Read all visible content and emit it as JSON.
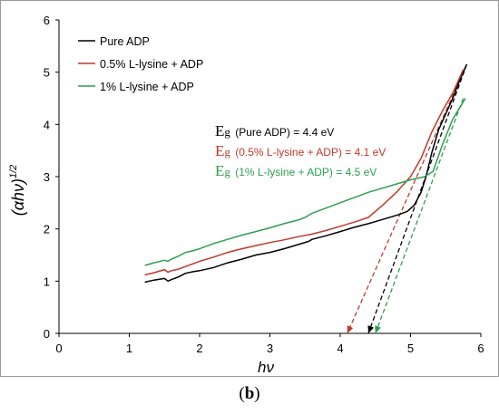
{
  "chart_data": {
    "type": "line",
    "xlabel": "hν",
    "ylabel_main": "(αhν)",
    "ylabel_sup": "1/2",
    "xlim": [
      0,
      6
    ],
    "ylim": [
      0,
      6
    ],
    "xticks": [
      "0",
      "1",
      "2",
      "3",
      "4",
      "5",
      "6"
    ],
    "yticks": [
      "0",
      "1",
      "2",
      "3",
      "4",
      "5",
      "6"
    ],
    "grid": false,
    "legend_position": "top-left",
    "series": [
      {
        "name": "Pure ADP",
        "color": "#000000",
        "x": [
          1.22,
          1.35,
          1.5,
          1.55,
          1.6,
          1.7,
          1.8,
          1.9,
          2.0,
          2.2,
          2.4,
          2.6,
          2.8,
          3.0,
          3.2,
          3.4,
          3.55,
          3.6,
          3.8,
          4.0,
          4.2,
          4.4,
          4.6,
          4.8,
          4.95,
          5.05,
          5.15,
          5.22,
          5.3,
          5.4,
          5.5,
          5.6,
          5.7,
          5.8
        ],
        "y": [
          0.98,
          1.02,
          1.05,
          1.0,
          1.03,
          1.08,
          1.15,
          1.18,
          1.2,
          1.26,
          1.35,
          1.42,
          1.5,
          1.55,
          1.62,
          1.7,
          1.76,
          1.8,
          1.87,
          1.95,
          2.03,
          2.1,
          2.18,
          2.26,
          2.33,
          2.45,
          2.7,
          3.0,
          3.45,
          3.9,
          4.2,
          4.5,
          4.85,
          5.15
        ]
      },
      {
        "name": "0.5% L-lysine + ADP",
        "color": "#c0392b",
        "x": [
          1.22,
          1.35,
          1.5,
          1.55,
          1.6,
          1.7,
          1.8,
          1.9,
          2.0,
          2.2,
          2.4,
          2.6,
          2.8,
          3.0,
          3.2,
          3.4,
          3.6,
          3.8,
          4.0,
          4.2,
          4.4,
          4.6,
          4.8,
          5.0,
          5.15,
          5.3,
          5.45,
          5.6,
          5.75
        ],
        "y": [
          1.12,
          1.16,
          1.22,
          1.17,
          1.2,
          1.23,
          1.28,
          1.33,
          1.38,
          1.46,
          1.55,
          1.62,
          1.68,
          1.74,
          1.79,
          1.85,
          1.9,
          1.97,
          2.05,
          2.13,
          2.22,
          2.45,
          2.7,
          3.0,
          3.35,
          3.85,
          4.25,
          4.6,
          5.05
        ]
      },
      {
        "name": "1% L-lysine + ADP",
        "color": "#2e9e4f",
        "x": [
          1.22,
          1.35,
          1.5,
          1.55,
          1.6,
          1.7,
          1.8,
          1.9,
          2.0,
          2.2,
          2.4,
          2.6,
          2.8,
          3.0,
          3.2,
          3.4,
          3.5,
          3.6,
          3.8,
          4.0,
          4.2,
          4.4,
          4.6,
          4.8,
          5.0,
          5.2,
          5.32,
          5.45,
          5.6,
          5.78
        ],
        "y": [
          1.3,
          1.35,
          1.4,
          1.38,
          1.42,
          1.48,
          1.55,
          1.58,
          1.62,
          1.72,
          1.8,
          1.88,
          1.95,
          2.02,
          2.1,
          2.17,
          2.22,
          2.3,
          2.4,
          2.5,
          2.6,
          2.7,
          2.78,
          2.86,
          2.94,
          3.0,
          3.1,
          3.6,
          4.1,
          4.5
        ]
      }
    ],
    "tangents": [
      {
        "series": "Pure ADP",
        "color": "#000000",
        "from": [
          5.8,
          5.15
        ],
        "to": [
          4.4,
          0
        ]
      },
      {
        "series": "0.5% L-lysine + ADP",
        "color": "#c0392b",
        "from": [
          5.78,
          5.1
        ],
        "to": [
          4.1,
          0
        ]
      },
      {
        "series": "1% L-lysine + ADP",
        "color": "#2e9e4f",
        "from": [
          5.75,
          4.5
        ],
        "to": [
          4.5,
          0
        ]
      }
    ],
    "annotations": [
      {
        "prefix": "E",
        "sub": "g",
        "text": " (Pure ADP) = 4.4 eV",
        "color": "#000000"
      },
      {
        "prefix": "E",
        "sub": "g",
        "text": " (0.5% L-lysine + ADP) = 4.1 eV",
        "color": "#c0392b"
      },
      {
        "prefix": "E",
        "sub": "g",
        "text": " (1% L-lysine + ADP) = 4.5 eV",
        "color": "#2e9e4f"
      }
    ]
  },
  "panel": {
    "open": "(",
    "letter": "b",
    "close": ")"
  }
}
